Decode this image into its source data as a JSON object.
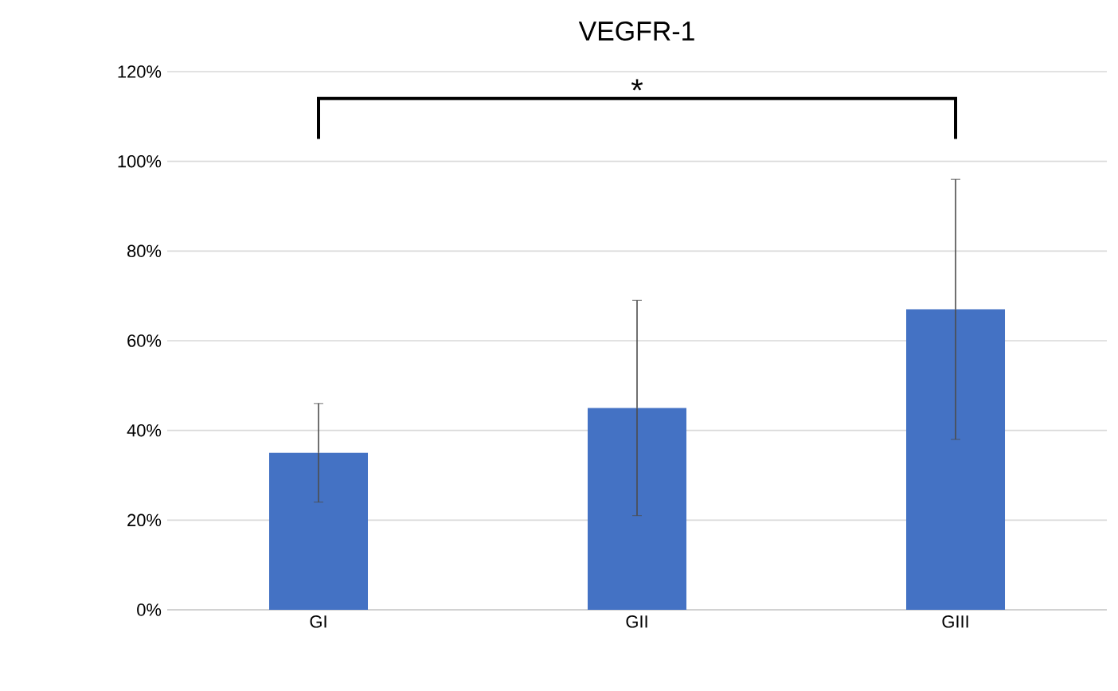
{
  "chart_data": {
    "type": "bar",
    "title": "VEGFR-1",
    "categories": [
      "GI",
      "GII",
      "GIII"
    ],
    "values": [
      35,
      45,
      67
    ],
    "errors": [
      11,
      24,
      29
    ],
    "color": "#4472c4",
    "ylim": [
      0,
      120
    ],
    "yticks": [
      {
        "value": 0,
        "label": "0%"
      },
      {
        "value": 20,
        "label": "20%"
      },
      {
        "value": 40,
        "label": "40%"
      },
      {
        "value": 60,
        "label": "60%"
      },
      {
        "value": 80,
        "label": "80%"
      },
      {
        "value": 100,
        "label": "100%"
      },
      {
        "value": 120,
        "label": "120%"
      }
    ],
    "grid": "y",
    "annotations": [
      "*"
    ]
  }
}
